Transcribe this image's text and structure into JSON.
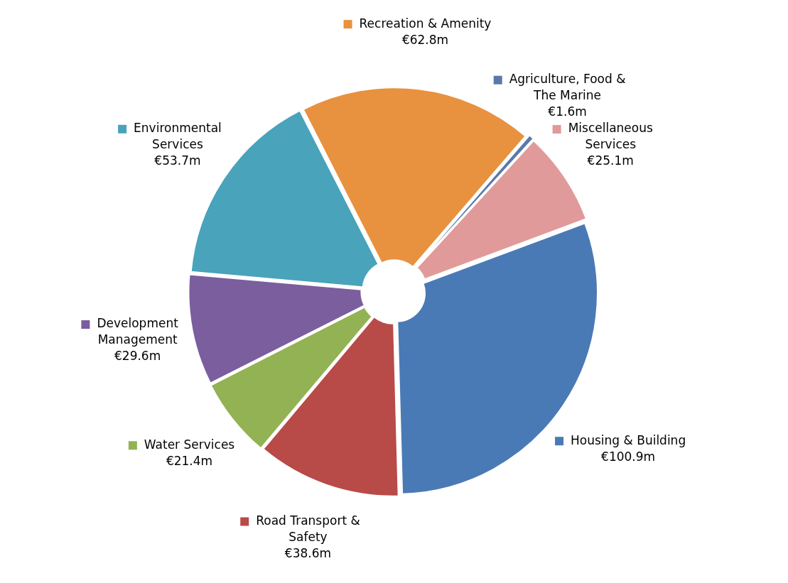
{
  "chart_data": {
    "type": "donut",
    "categories": [
      "Recreation & Amenity",
      "Agriculture, Food & The Marine",
      "Miscellaneous Services",
      "Housing & Building",
      "Road Transport & Safety",
      "Water Services",
      "Development Management",
      "Environmental Services"
    ],
    "values": [
      62.8,
      1.6,
      25.1,
      100.9,
      38.6,
      21.4,
      29.6,
      53.7
    ],
    "value_labels": [
      "€62.8m",
      "€1.6m",
      "€25.1m",
      "€100.9m",
      "€38.6m",
      "€21.4m",
      "€29.6m",
      "€53.7m"
    ],
    "legend": "top left",
    "colors": [
      "#e8913f",
      "#5a78aa",
      "#e09a9a",
      "#4a7ab5",
      "#b84a48",
      "#93b254",
      "#7b5e9e",
      "#48a3bb"
    ]
  }
}
